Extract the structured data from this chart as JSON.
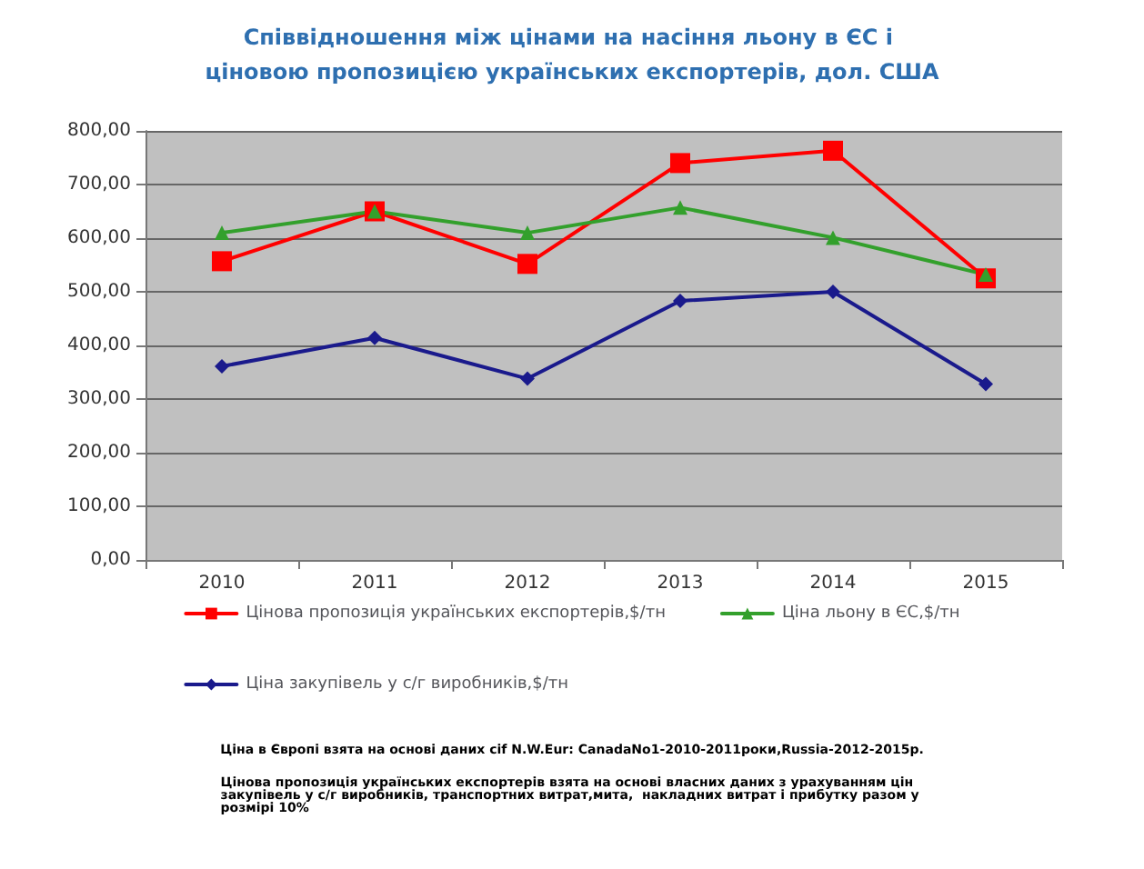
{
  "chart_data": {
    "type": "line",
    "title": "Співвідношення між цінами на насіння льону в ЄС і ціновою пропозицією українських експортерів, дол. США",
    "categories": [
      "2010",
      "2011",
      "2012",
      "2013",
      "2014",
      "2015"
    ],
    "series": [
      {
        "name": "Цінова пропозиція українських експортерів,$/тн",
        "color": "#ff0000",
        "marker": "square",
        "values": [
          557,
          650,
          552,
          740,
          763,
          525
        ]
      },
      {
        "name": "Ціна льону в ЄС,$/тн",
        "color": "#33a02c",
        "marker": "triangle",
        "values": [
          610,
          650,
          610,
          657,
          601,
          532
        ]
      },
      {
        "name": "Ціна закупівель у с/г виробників,$/тн",
        "color": "#1a1a8c",
        "marker": "diamond",
        "values": [
          361,
          414,
          338,
          483,
          500,
          328
        ]
      }
    ],
    "ylim": [
      0,
      800
    ],
    "yticks": [
      {
        "value": 0,
        "label": "0,00"
      },
      {
        "value": 100,
        "label": "100,00"
      },
      {
        "value": 200,
        "label": "200,00"
      },
      {
        "value": 300,
        "label": "300,00"
      },
      {
        "value": 400,
        "label": "400,00"
      },
      {
        "value": 500,
        "label": "500,00"
      },
      {
        "value": 600,
        "label": "600,00"
      },
      {
        "value": 700,
        "label": "700,00"
      },
      {
        "value": 800,
        "label": "800,00"
      }
    ],
    "grid": "y",
    "legend": "bottom",
    "annotations": [
      "Ціна в Європі взята на основі даних cif N.W.Eur: CanadaNo1-2010-2011роки,Russia-2012-2015р.",
      "Цінова пропозиція українських експортерів взята на основі власних даних з урахуванням цін закупівель у с/г виробників, транспортних витрат,мита,  накладних витрат і прибутку разом у розмірі 10%"
    ]
  }
}
